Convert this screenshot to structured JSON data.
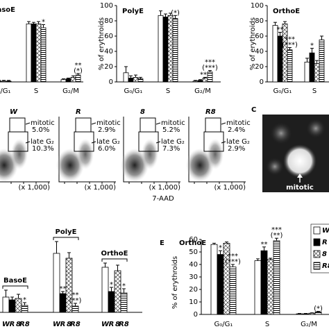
{
  "chart_data": [
    {
      "type": "bar",
      "title": "BasoE",
      "categories": [
        "G₀/G₁",
        "S",
        "G₂/M"
      ],
      "ylim": [
        0,
        100
      ],
      "series": [
        {
          "name": "W",
          "color": "#ffffff",
          "values": [
            2,
            76,
            3
          ],
          "errors": [
            1,
            3,
            1
          ]
        },
        {
          "name": "R",
          "color": "#000000",
          "values": [
            1,
            76,
            4
          ],
          "errors": [
            1,
            2,
            1
          ]
        },
        {
          "name": "8",
          "color": "#ffffff",
          "pattern": "crosshatch",
          "values": [
            1,
            76,
            6
          ],
          "errors": [
            1,
            3,
            2
          ]
        },
        {
          "name": "R8",
          "color": "#ffffff",
          "pattern": "hstripes",
          "values": [
            1,
            71,
            9
          ],
          "errors": [
            1,
            4,
            2
          ],
          "significance": [
            null,
            "*",
            [
              "**",
              "(*)"
            ]
          ]
        }
      ]
    },
    {
      "type": "bar",
      "title": "PolyE",
      "ylabel": "% of erythroids",
      "categories": [
        "G₀/G₁",
        "S",
        "G₂/M"
      ],
      "ylim": [
        0,
        100
      ],
      "yticks": [
        0,
        20,
        40,
        60,
        80,
        100
      ],
      "series": [
        {
          "name": "W",
          "color": "#ffffff",
          "values": [
            12,
            87,
            1
          ],
          "errors": [
            8,
            6,
            1
          ]
        },
        {
          "name": "R",
          "color": "#000000",
          "values": [
            5,
            85,
            2
          ],
          "errors": [
            3,
            4,
            1
          ]
        },
        {
          "name": "8",
          "color": "#ffffff",
          "pattern": "crosshatch",
          "values": [
            6,
            87,
            5
          ],
          "errors": [
            3,
            3,
            1
          ],
          "significance": [
            null,
            null,
            "***"
          ]
        },
        {
          "name": "R8",
          "color": "#ffffff",
          "pattern": "hstripes",
          "values": [
            4,
            83,
            13
          ],
          "errors": [
            2,
            4,
            2
          ],
          "significance": [
            null,
            "(*)",
            [
              "***",
              "(***)"
            ]
          ]
        }
      ]
    },
    {
      "type": "bar",
      "title": "OrthoE",
      "ylabel": "% of erythroids",
      "categories": [
        "G₀/G₁",
        "S"
      ],
      "ylim": [
        0,
        100
      ],
      "yticks": [
        0,
        20,
        40,
        60,
        80,
        100
      ],
      "series": [
        {
          "name": "W",
          "color": "#ffffff",
          "values": [
            74,
            26
          ],
          "errors": [
            4,
            5
          ]
        },
        {
          "name": "R",
          "color": "#000000",
          "values": [
            60,
            38
          ],
          "errors": [
            5,
            6
          ],
          "significance": [
            "**",
            "*"
          ]
        },
        {
          "name": "8",
          "color": "#ffffff",
          "pattern": "crosshatch",
          "values": [
            76,
            24
          ],
          "errors": [
            3,
            4
          ]
        },
        {
          "name": "R8",
          "color": "#ffffff",
          "pattern": "hstripes",
          "values": [
            42,
            55
          ],
          "errors": [
            3,
            5
          ],
          "significance": [
            [
              "***",
              "(***)"
            ],
            null
          ]
        }
      ]
    },
    {
      "type": "bar",
      "categories": [
        "BasoE",
        "PolyE",
        "OrthoE"
      ],
      "ylim": [
        0,
        60
      ],
      "series": [
        {
          "name": "W",
          "color": "#ffffff",
          "values": [
            11,
            42.5,
            32.5
          ],
          "errors": [
            5,
            8.5,
            3
          ]
        },
        {
          "name": "R",
          "color": "#000000",
          "values": [
            9,
            13.5,
            15
          ],
          "errors": [
            2,
            1.5,
            3
          ],
          "significance": [
            null,
            "**",
            "*"
          ]
        },
        {
          "name": "8",
          "color": "#ffffff",
          "pattern": "crosshatch",
          "values": [
            10,
            39,
            30
          ],
          "errors": [
            3,
            4,
            4
          ]
        },
        {
          "name": "R8",
          "color": "#ffffff",
          "pattern": "hstripes",
          "values": [
            5,
            4.5,
            14
          ],
          "errors": [
            2,
            2,
            3
          ],
          "significance": [
            "*",
            [
              "**",
              "(**)"
            ],
            "*"
          ]
        }
      ]
    },
    {
      "type": "bar",
      "title": "OrthoE",
      "ylabel": "% of erythroids",
      "categories": [
        "G₀/G₁",
        "S",
        "G₂/M"
      ],
      "ylim": [
        0,
        60
      ],
      "yticks": [
        0,
        10,
        20,
        30,
        40,
        50,
        60
      ],
      "legend": "right",
      "series": [
        {
          "name": "W",
          "color": "#ffffff",
          "values": [
            56,
            43,
            0.5
          ],
          "errors": [
            1,
            1.5,
            0.3
          ]
        },
        {
          "name": "R",
          "color": "#000000",
          "values": [
            48,
            51,
            0.5
          ],
          "errors": [
            3,
            3,
            0.3
          ],
          "significance": [
            "*",
            "**",
            null
          ]
        },
        {
          "name": "8",
          "color": "#ffffff",
          "pattern": "crosshatch",
          "values": [
            57,
            44,
            1
          ],
          "errors": [
            1,
            1,
            0.3
          ]
        },
        {
          "name": "R8",
          "color": "#ffffff",
          "pattern": "hstripes",
          "values": [
            38,
            59,
            2
          ],
          "errors": [
            2,
            2,
            0.5
          ],
          "significance": [
            [
              "***",
              "(***)"
            ],
            [
              "***",
              "(**)"
            ],
            "(*)"
          ]
        }
      ]
    }
  ],
  "panel_labels": [
    "C",
    "E"
  ],
  "flow": {
    "axis_label": "7-AAD",
    "scale_note": "(x 1,000)",
    "plots": [
      {
        "genotype": "W",
        "gates": [
          {
            "name": "mitotic",
            "value": "5.0%"
          },
          {
            "name": "late G₂",
            "value": "10.3%"
          }
        ]
      },
      {
        "genotype": "R",
        "gates": [
          {
            "name": "mitotic",
            "value": "2.9%"
          },
          {
            "name": "late G₂",
            "value": "6.0%"
          }
        ]
      },
      {
        "genotype": "8",
        "gates": [
          {
            "name": "mitotic",
            "value": "5.2%"
          },
          {
            "name": "late G₂",
            "value": "7.3%"
          }
        ]
      },
      {
        "genotype": "R8",
        "gates": [
          {
            "name": "mitotic",
            "value": "2.4%"
          },
          {
            "name": "late G₂",
            "value": "2.9%"
          }
        ]
      }
    ]
  },
  "micrograph": {
    "label": "mitotic"
  }
}
